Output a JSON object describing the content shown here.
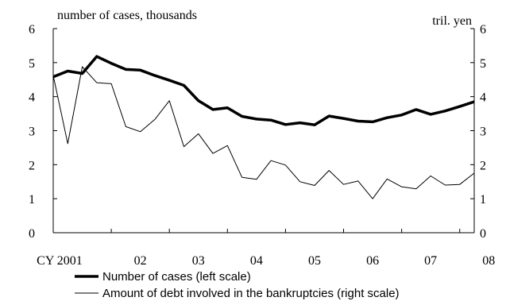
{
  "chart_data": {
    "type": "line",
    "left_axis_label": "number of cases, thousands",
    "right_axis_label": "tril. yen",
    "ylim_left": [
      0,
      6
    ],
    "ylim_right": [
      0,
      6
    ],
    "y_ticks": [
      "0",
      "1",
      "2",
      "3",
      "4",
      "5",
      "6"
    ],
    "x_tick_labels": [
      "CY 2001",
      "02",
      "03",
      "04",
      "05",
      "06",
      "07",
      "08"
    ],
    "grid": false,
    "legend_position": "bottom",
    "colors": {
      "axis": "#000000",
      "series": "#000000"
    },
    "series": [
      {
        "name": "Number of cases (left scale)",
        "axis": "left",
        "line_style": "thick",
        "values": [
          4.58,
          4.75,
          4.68,
          5.18,
          4.98,
          4.8,
          4.78,
          4.62,
          4.48,
          4.33,
          3.88,
          3.62,
          3.67,
          3.42,
          3.34,
          3.31,
          3.18,
          3.23,
          3.17,
          3.43,
          3.36,
          3.28,
          3.26,
          3.38,
          3.46,
          3.62,
          3.48,
          3.58,
          3.71,
          3.85
        ]
      },
      {
        "name": "Amount of debt involved in the bankruptcies (right scale)",
        "axis": "right",
        "line_style": "thin",
        "values": [
          4.62,
          2.62,
          4.88,
          4.41,
          4.38,
          3.12,
          2.97,
          3.33,
          3.88,
          2.53,
          2.91,
          2.33,
          2.56,
          1.63,
          1.57,
          2.12,
          1.99,
          1.5,
          1.39,
          1.83,
          1.42,
          1.52,
          1.0,
          1.58,
          1.35,
          1.29,
          1.67,
          1.4,
          1.42,
          1.75
        ]
      }
    ]
  }
}
